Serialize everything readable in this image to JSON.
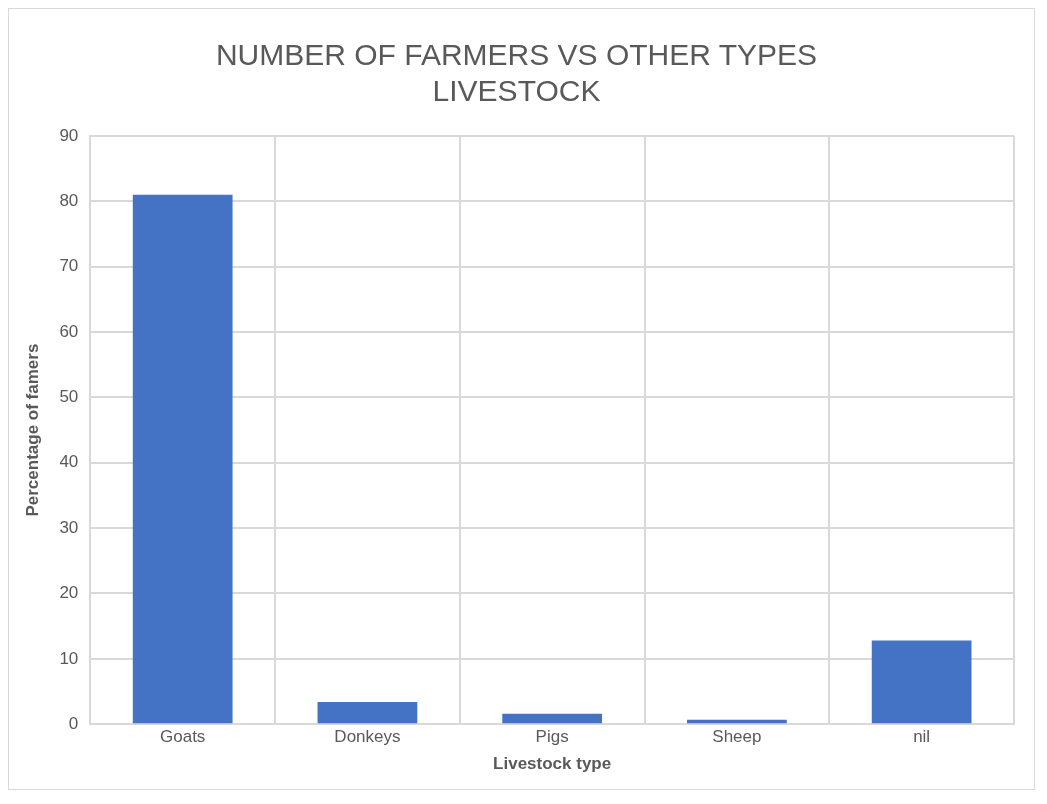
{
  "chart_data": {
    "type": "bar",
    "title": [
      "NUMBER OF FARMERS VS OTHER TYPES",
      "LIVESTOCK"
    ],
    "xlabel": "Livestock type",
    "ylabel": "Percentage of famers",
    "categories": [
      "Goats",
      "Donkeys",
      "Pigs",
      "Sheep",
      "nil"
    ],
    "values": [
      81,
      3.4,
      1.6,
      0.7,
      12.8
    ],
    "color": "#4472c4",
    "ylim": [
      0,
      90
    ],
    "yticks": [
      0,
      10,
      20,
      30,
      40,
      50,
      60,
      70,
      80,
      90
    ],
    "grid": true
  }
}
